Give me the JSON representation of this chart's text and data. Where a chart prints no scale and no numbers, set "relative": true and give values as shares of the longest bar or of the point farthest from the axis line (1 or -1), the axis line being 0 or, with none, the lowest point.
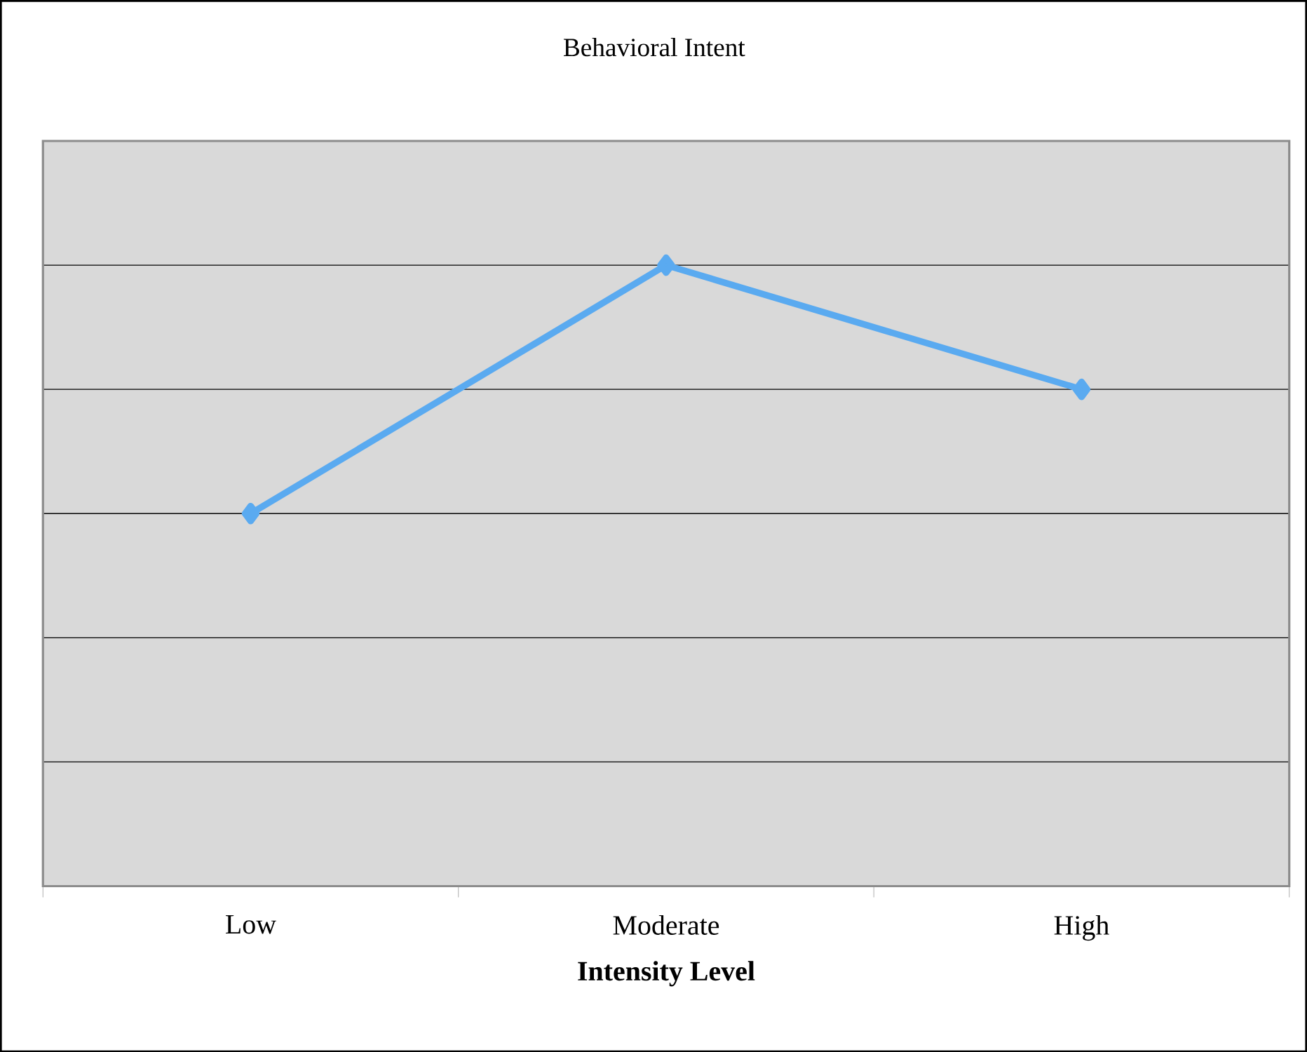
{
  "chart_data": {
    "type": "line",
    "title": "Behavioral Intent",
    "xlabel": "Intensity Level",
    "categories": [
      "Low",
      "Moderate",
      "High"
    ],
    "series": [
      {
        "color": "#5aaaf0",
        "values": [
          0.6,
          1,
          0.8
        ]
      }
    ],
    "relative": true,
    "grid": "y",
    "marker": "diamond",
    "line_style": "solid"
  }
}
